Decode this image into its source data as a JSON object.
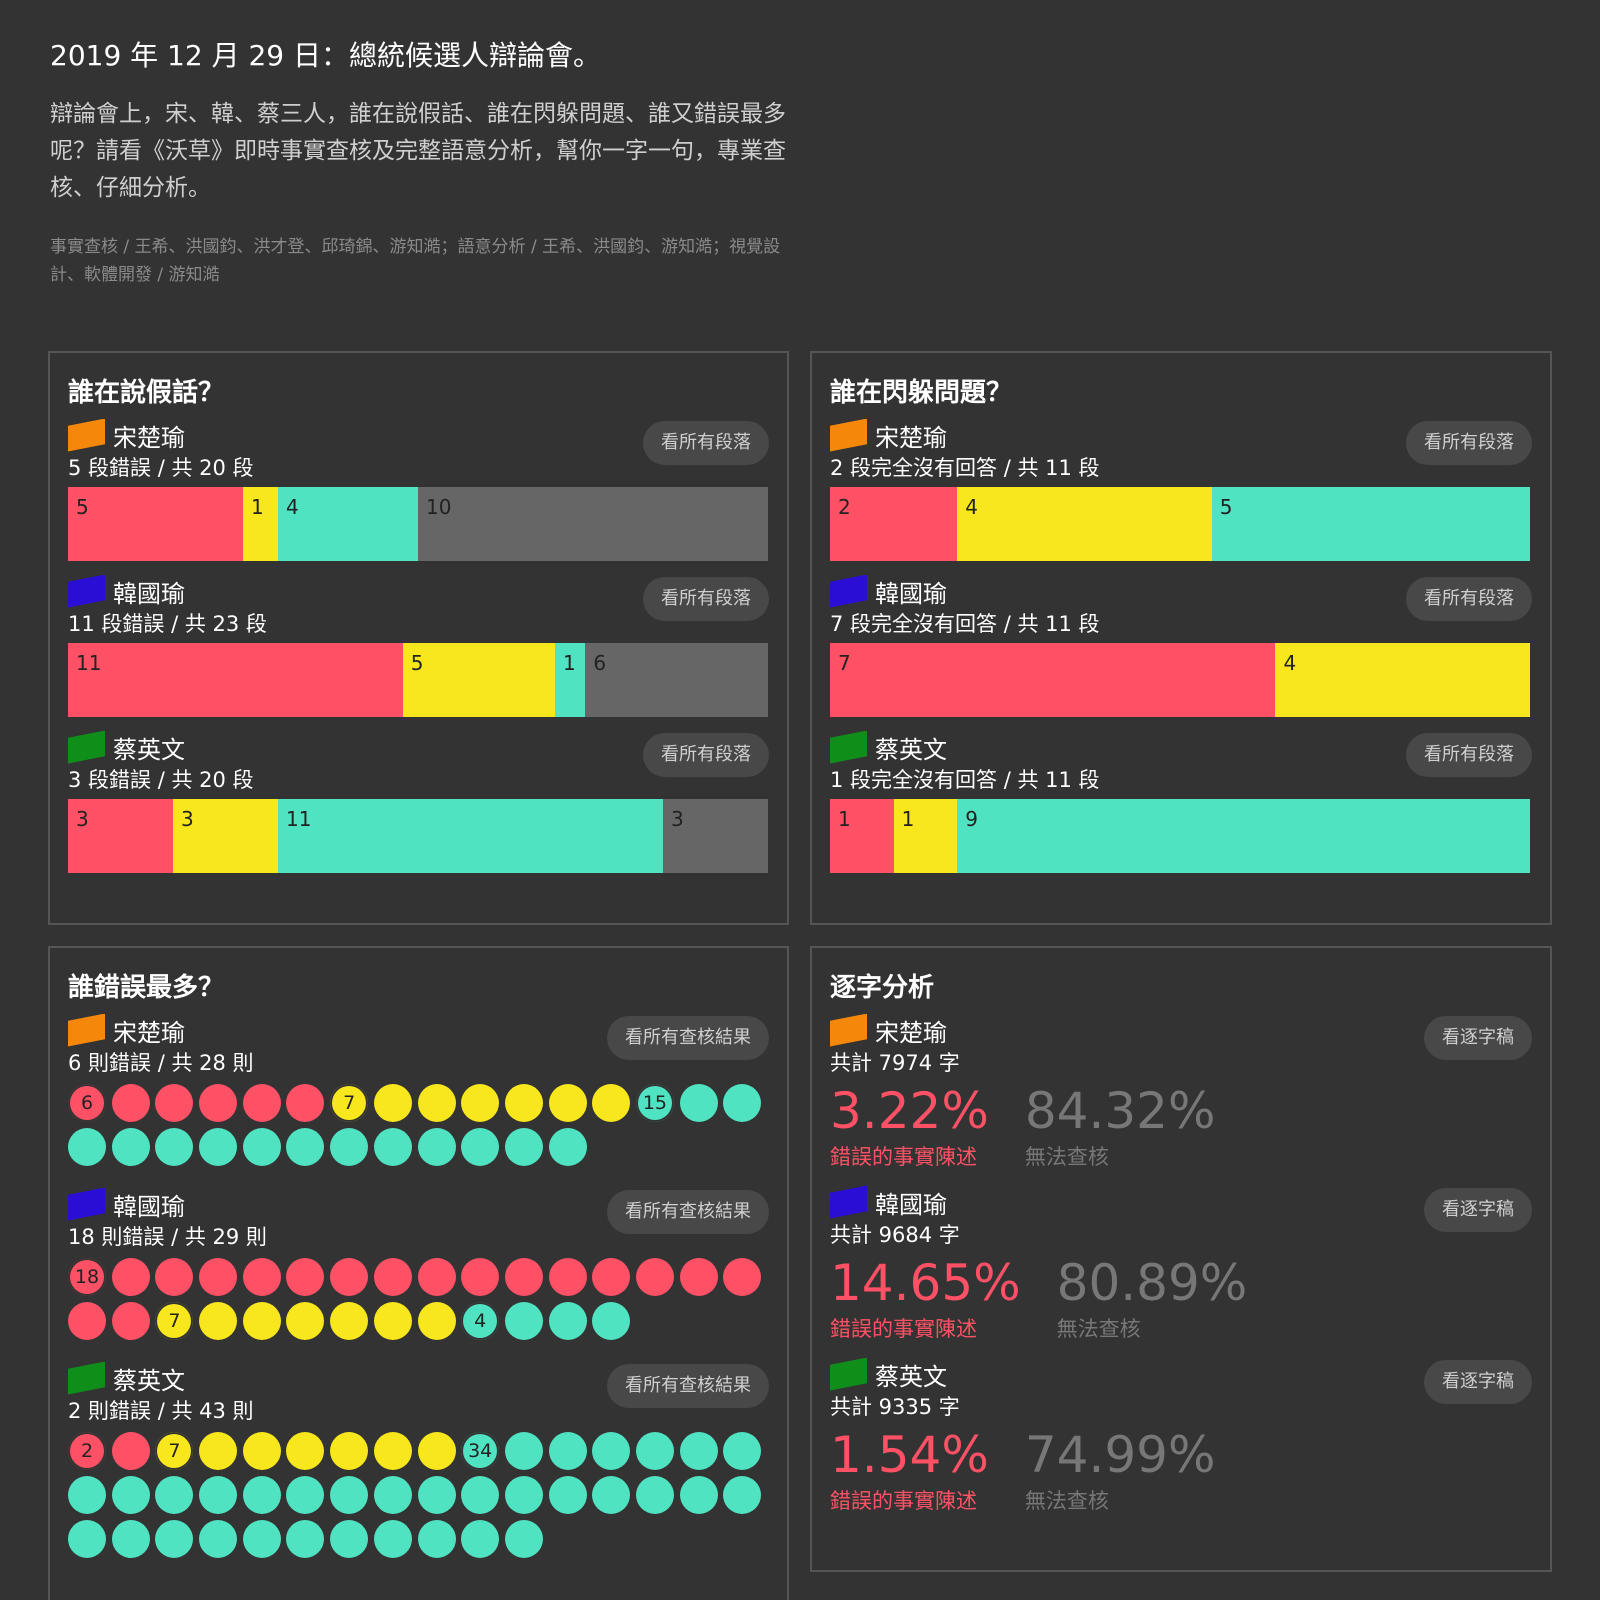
{
  "header": {
    "title": "2019 年 12 月 29 日：總統候選人辯論會。",
    "intro": "辯論會上，宋、韓、蔡三人，誰在說假話、誰在閃躲問題、誰又錯誤最多呢？請看《沃草》即時事實查核及完整語意分析，幫你一字一句，專業查核、仔細分析。",
    "credits": "事實查核 / 王希、洪國鈞、洪才登、邱琦錦、游知澔；語意分析 / 王希、洪國鈞、游知澔；視覺設計、軟體開發 / 游知澔"
  },
  "colors": {
    "red": "#ff5166",
    "yellow": "#f8e71c",
    "teal": "#50e3c2",
    "gray": "#666666",
    "flag_soong": "#f5870b",
    "flag_han": "#2b0ed6",
    "flag_tsai": "#0f8f1a"
  },
  "false_panel": {
    "title": "誰在說假話？",
    "candidates": [
      {
        "name": "宋楚瑜",
        "flag": "flag_soong",
        "summary": "5 段錯誤 / 共 20 段",
        "button": "看所有段落",
        "segments": [
          {
            "v": 5,
            "c": "red"
          },
          {
            "v": 1,
            "c": "yellow"
          },
          {
            "v": 4,
            "c": "teal"
          },
          {
            "v": 10,
            "c": "gray"
          }
        ]
      },
      {
        "name": "韓國瑜",
        "flag": "flag_han",
        "summary": "11 段錯誤 / 共 23 段",
        "button": "看所有段落",
        "segments": [
          {
            "v": 11,
            "c": "red"
          },
          {
            "v": 5,
            "c": "yellow"
          },
          {
            "v": 1,
            "c": "teal"
          },
          {
            "v": 6,
            "c": "gray"
          }
        ]
      },
      {
        "name": "蔡英文",
        "flag": "flag_tsai",
        "summary": "3 段錯誤 / 共 20 段",
        "button": "看所有段落",
        "segments": [
          {
            "v": 3,
            "c": "red"
          },
          {
            "v": 3,
            "c": "yellow"
          },
          {
            "v": 11,
            "c": "teal"
          },
          {
            "v": 3,
            "c": "gray"
          }
        ]
      }
    ]
  },
  "dodge_panel": {
    "title": "誰在閃躲問題？",
    "candidates": [
      {
        "name": "宋楚瑜",
        "flag": "flag_soong",
        "summary": "2 段完全沒有回答 / 共 11 段",
        "button": "看所有段落",
        "segments": [
          {
            "v": 2,
            "c": "red"
          },
          {
            "v": 4,
            "c": "yellow"
          },
          {
            "v": 5,
            "c": "teal"
          }
        ]
      },
      {
        "name": "韓國瑜",
        "flag": "flag_han",
        "summary": "7 段完全沒有回答 / 共 11 段",
        "button": "看所有段落",
        "segments": [
          {
            "v": 7,
            "c": "red"
          },
          {
            "v": 4,
            "c": "yellow"
          }
        ]
      },
      {
        "name": "蔡英文",
        "flag": "flag_tsai",
        "summary": "1 段完全沒有回答 / 共 11 段",
        "button": "看所有段落",
        "segments": [
          {
            "v": 1,
            "c": "red"
          },
          {
            "v": 1,
            "c": "yellow"
          },
          {
            "v": 9,
            "c": "teal"
          }
        ]
      }
    ]
  },
  "errors_panel": {
    "title": "誰錯誤最多？",
    "candidates": [
      {
        "name": "宋楚瑜",
        "flag": "flag_soong",
        "summary": "6 則錯誤 / 共 28 則",
        "button": "看所有查核結果",
        "groups": [
          {
            "v": 6,
            "c": "red"
          },
          {
            "v": 7,
            "c": "yellow"
          },
          {
            "v": 15,
            "c": "teal"
          }
        ]
      },
      {
        "name": "韓國瑜",
        "flag": "flag_han",
        "summary": "18 則錯誤 / 共 29 則",
        "button": "看所有查核結果",
        "groups": [
          {
            "v": 18,
            "c": "red"
          },
          {
            "v": 7,
            "c": "yellow"
          },
          {
            "v": 4,
            "c": "teal"
          }
        ]
      },
      {
        "name": "蔡英文",
        "flag": "flag_tsai",
        "summary": "2 則錯誤 / 共 43 則",
        "button": "看所有查核結果",
        "groups": [
          {
            "v": 2,
            "c": "red"
          },
          {
            "v": 7,
            "c": "yellow"
          },
          {
            "v": 34,
            "c": "teal"
          }
        ]
      }
    ]
  },
  "words_panel": {
    "title": "逐字分析",
    "candidates": [
      {
        "name": "宋楚瑜",
        "flag": "flag_soong",
        "summary": "共計 7974 字",
        "button": "看逐字稿",
        "error_pct": "3.22%",
        "error_label": "錯誤的事實陳述",
        "unverifiable_pct": "84.32%",
        "unverifiable_label": "無法查核"
      },
      {
        "name": "韓國瑜",
        "flag": "flag_han",
        "summary": "共計 9684 字",
        "button": "看逐字稿",
        "error_pct": "14.65%",
        "error_label": "錯誤的事實陳述",
        "unverifiable_pct": "80.89%",
        "unverifiable_label": "無法查核"
      },
      {
        "name": "蔡英文",
        "flag": "flag_tsai",
        "summary": "共計 9335 字",
        "button": "看逐字稿",
        "error_pct": "1.54%",
        "error_label": "錯誤的事實陳述",
        "unverifiable_pct": "74.99%",
        "unverifiable_label": "無法查核"
      }
    ]
  }
}
